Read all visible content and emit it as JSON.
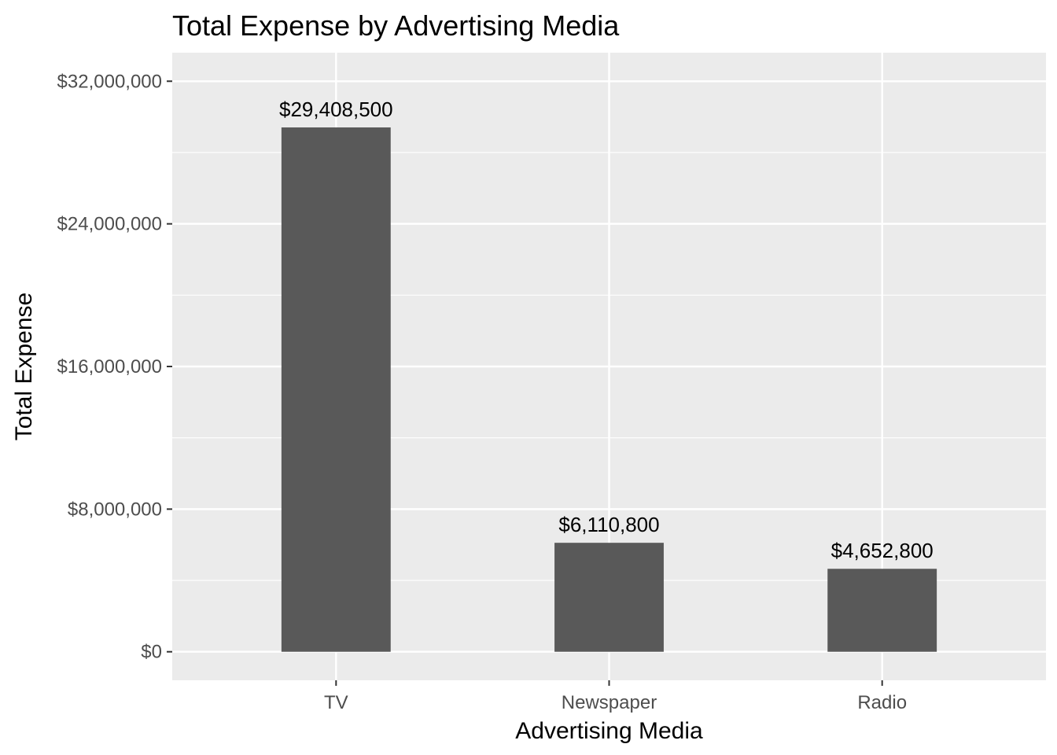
{
  "chart_data": {
    "type": "bar",
    "title": "Total Expense by Advertising Media",
    "xlabel": "Advertising Media",
    "ylabel": "Total Expense",
    "categories": [
      "TV",
      "Newspaper",
      "Radio"
    ],
    "values": [
      29408500,
      6110800,
      4652800
    ],
    "value_labels": [
      "$29,408,500",
      "$6,110,800",
      "$4,652,800"
    ],
    "yticks": [
      0,
      8000000,
      16000000,
      24000000,
      32000000
    ],
    "ytick_labels": [
      "$0",
      "$8,000,000",
      "$16,000,000",
      "$24,000,000",
      "$32,000,000"
    ],
    "ylim": [
      -1600000,
      33600000
    ],
    "grid": true,
    "legend": "none",
    "colors": {
      "bar": "#595959",
      "panel": "#ebebeb",
      "grid": "#ffffff"
    }
  }
}
